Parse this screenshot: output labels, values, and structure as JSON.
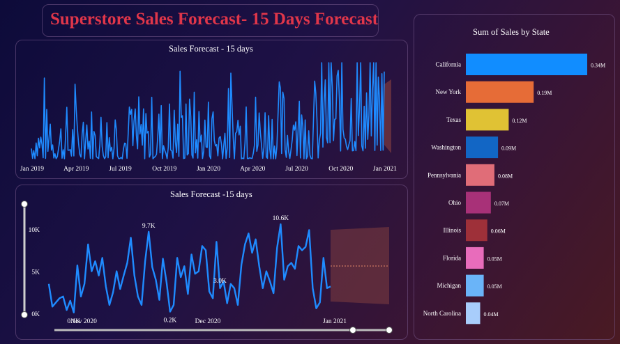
{
  "page_title": "Superstore Sales Forecast- 15 Days Forecast",
  "colors": {
    "title": "#e0364a",
    "line": "#1f8bff",
    "forecast_band": "#7a3a40"
  },
  "chart_data": [
    {
      "type": "line",
      "title": "Sales Forecast - 15 days",
      "x_ticks": [
        "Jan 2019",
        "Apr 2019",
        "Jul 2019",
        "Oct 2019",
        "Jan 2020",
        "Apr 2020",
        "Jul 2020",
        "Oct 2020",
        "Jan 2021"
      ],
      "grid": false,
      "legend": "none",
      "forecast_band": true
    },
    {
      "type": "line",
      "title": "Sales Forecast -15 days",
      "x_ticks": [
        "Nov 2020",
        "Dec 2020",
        "Jan 2021"
      ],
      "y_ticks": [
        "0K",
        "5K",
        "10K"
      ],
      "ylim": [
        0,
        12000
      ],
      "data_labels": [
        {
          "label": "0.1K",
          "value": 100
        },
        {
          "label": "9.7K",
          "value": 9700
        },
        {
          "label": "0.2K",
          "value": 200
        },
        {
          "label": "10.6K",
          "value": 10600
        },
        {
          "label": "3.0K",
          "value": 3000
        }
      ],
      "values": [
        3500,
        800,
        1300,
        1800,
        2000,
        400,
        1500,
        100,
        5700,
        2000,
        3500,
        8200,
        5000,
        6200,
        4500,
        6600,
        3200,
        1000,
        2500,
        5000,
        2900,
        4500,
        6000,
        9000,
        4500,
        2000,
        1000,
        6200,
        9700,
        5500,
        4000,
        1600,
        6500,
        3700,
        200,
        1000,
        6600,
        4300,
        5600,
        2300,
        7000,
        4700,
        5000,
        8000,
        7500,
        2600,
        1800,
        8500,
        3000,
        3800,
        1200,
        3500,
        3000,
        1000,
        5800,
        8200,
        9500,
        7200,
        8800,
        5600,
        3000,
        5000,
        3800,
        2400,
        7800,
        10600,
        4000,
        5600,
        6000,
        5300,
        8000,
        7500,
        7900,
        9900,
        3000,
        600,
        1300,
        6600,
        3000,
        3200
      ],
      "forecast_band": true,
      "range_slider": true
    },
    {
      "type": "bar",
      "orientation": "horizontal",
      "title": "Sum of Sales by State",
      "categories": [
        "California",
        "New York",
        "Texas",
        "Washington",
        "Pennsylvania",
        "Ohio",
        "Illinois",
        "Florida",
        "Michigan",
        "North Carolina"
      ],
      "values": [
        0.34,
        0.19,
        0.12,
        0.09,
        0.08,
        0.07,
        0.06,
        0.05,
        0.05,
        0.04
      ],
      "value_labels": [
        "0.34M",
        "0.19M",
        "0.12M",
        "0.09M",
        "0.08M",
        "0.07M",
        "0.06M",
        "0.05M",
        "0.05M",
        "0.04M"
      ],
      "unit": "M",
      "colors": [
        "#118dff",
        "#e66c37",
        "#e0c234",
        "#1266c5",
        "#e06d78",
        "#a83178",
        "#9e3039",
        "#e86cbb",
        "#6ab4f8",
        "#a8cdfb"
      ]
    }
  ]
}
